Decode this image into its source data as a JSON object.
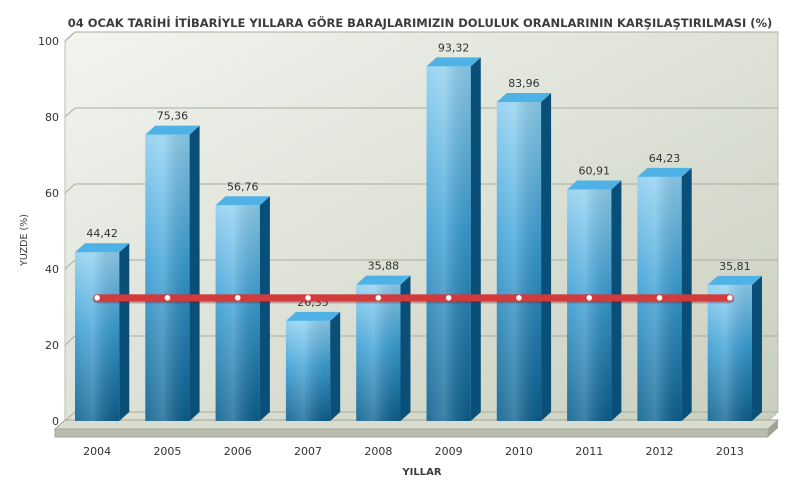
{
  "chart_data": {
    "type": "bar",
    "title": "04 OCAK TARİHİ İTİBARİYLE YILLARA GÖRE BARAJLARIMIZIN DOLULUK ORANLARININ KARŞILAŞTIRILMASI (%)",
    "xlabel": "YILLAR",
    "ylabel": "YUZDE (%)",
    "ylim": [
      0,
      100
    ],
    "yticks": [
      0,
      20,
      40,
      60,
      80,
      100
    ],
    "grid": true,
    "categories": [
      "2004",
      "2005",
      "2006",
      "2007",
      "2008",
      "2009",
      "2010",
      "2011",
      "2012",
      "2013"
    ],
    "values": [
      44.42,
      75.36,
      56.76,
      26.35,
      35.88,
      93.32,
      83.96,
      60.91,
      64.23,
      35.81
    ],
    "value_labels": [
      "44,42",
      "75,36",
      "56,76",
      "26,35",
      "35,88",
      "93,32",
      "83,96",
      "60,91",
      "64,23",
      "35,81"
    ],
    "reference_line": {
      "value": 33.2
    },
    "colors": {
      "bar_top": "#8fd0f0",
      "bar_mid": "#3a9fd6",
      "bar_bottom": "#0a5f8e",
      "bar_side": "#0a4f78",
      "reference_line": "#d23a3c",
      "plot_bg": "#e7ebdf",
      "floor": "#b8bdae"
    }
  }
}
